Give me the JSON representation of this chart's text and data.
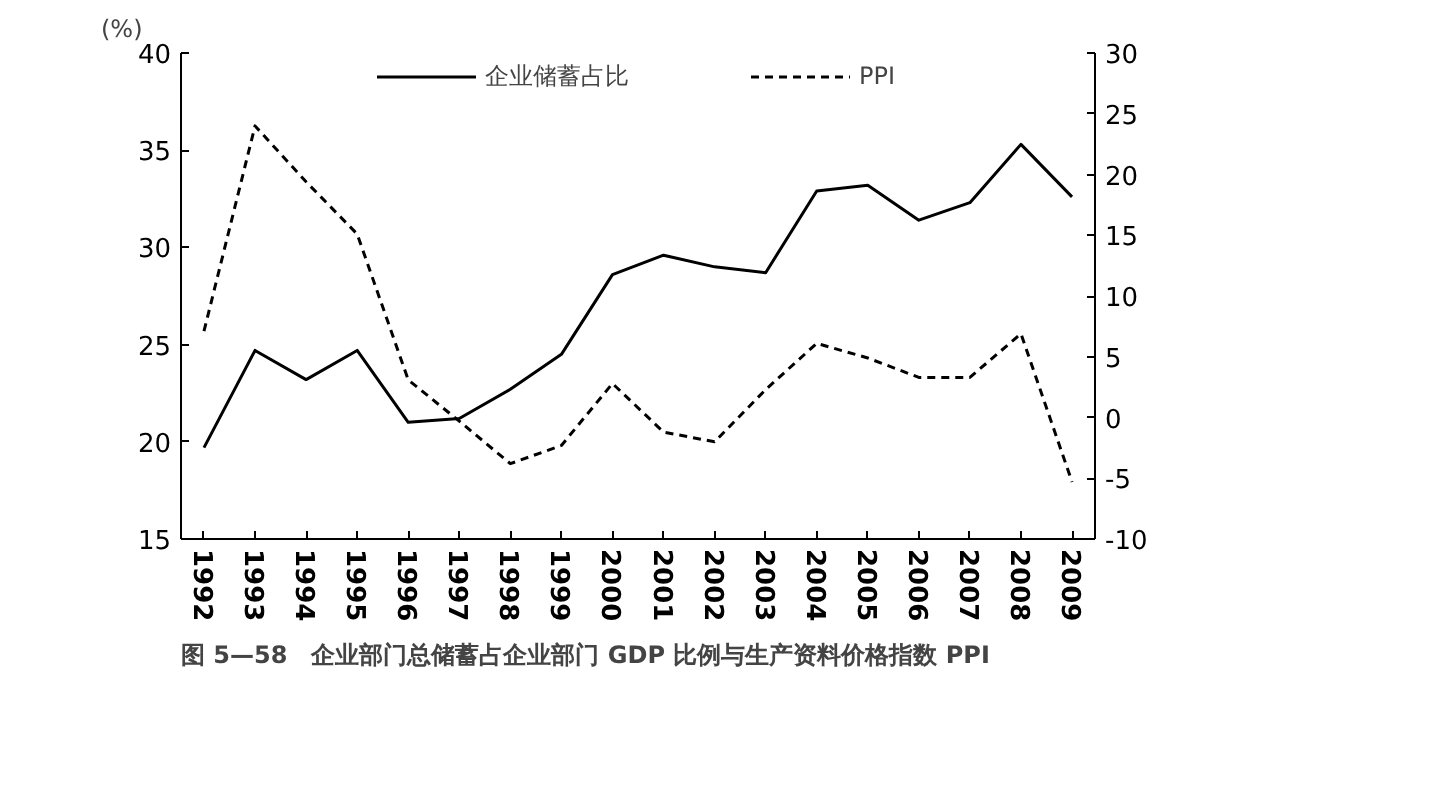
{
  "chart_data": {
    "type": "line",
    "title": "图 5—58　企业部门总储蓄占企业部门 GDP 比例与生产资料价格指数 PPI",
    "ylabel": "(%)",
    "categories": [
      "1992",
      "1993",
      "1994",
      "1995",
      "1996",
      "1997",
      "1998",
      "1999",
      "2000",
      "2001",
      "2002",
      "2003",
      "2004",
      "2005",
      "2006",
      "2007",
      "2008",
      "2009"
    ],
    "series": [
      {
        "name": "企业储蓄占比",
        "color": "#000000",
        "line_style": "solid",
        "values": [
          19.7,
          24.7,
          23.2,
          24.7,
          21.0,
          21.2,
          22.7,
          24.5,
          28.6,
          29.6,
          29.0,
          28.7,
          32.9,
          33.2,
          31.4,
          32.3,
          35.3,
          32.6
        ]
      },
      {
        "name": "PPI",
        "color": "#000000",
        "line_style": "dashed",
        "axis": "y2",
        "values": [
          7.1,
          24.0,
          19.4,
          15.1,
          3.1,
          -0.3,
          -3.8,
          -2.3,
          2.8,
          -1.2,
          -2.0,
          2.3,
          6.1,
          4.9,
          3.3,
          3.3,
          6.9,
          -5.3
        ]
      }
    ],
    "ylim": [
      15,
      40
    ],
    "yticks": [
      15,
      20,
      25,
      30,
      35,
      40
    ],
    "y2lim": [
      -10,
      30
    ],
    "y2ticks": [
      -10,
      -5,
      0,
      5,
      10,
      15,
      20,
      25,
      30
    ],
    "grid": false,
    "legend": "top",
    "marker": "none"
  }
}
